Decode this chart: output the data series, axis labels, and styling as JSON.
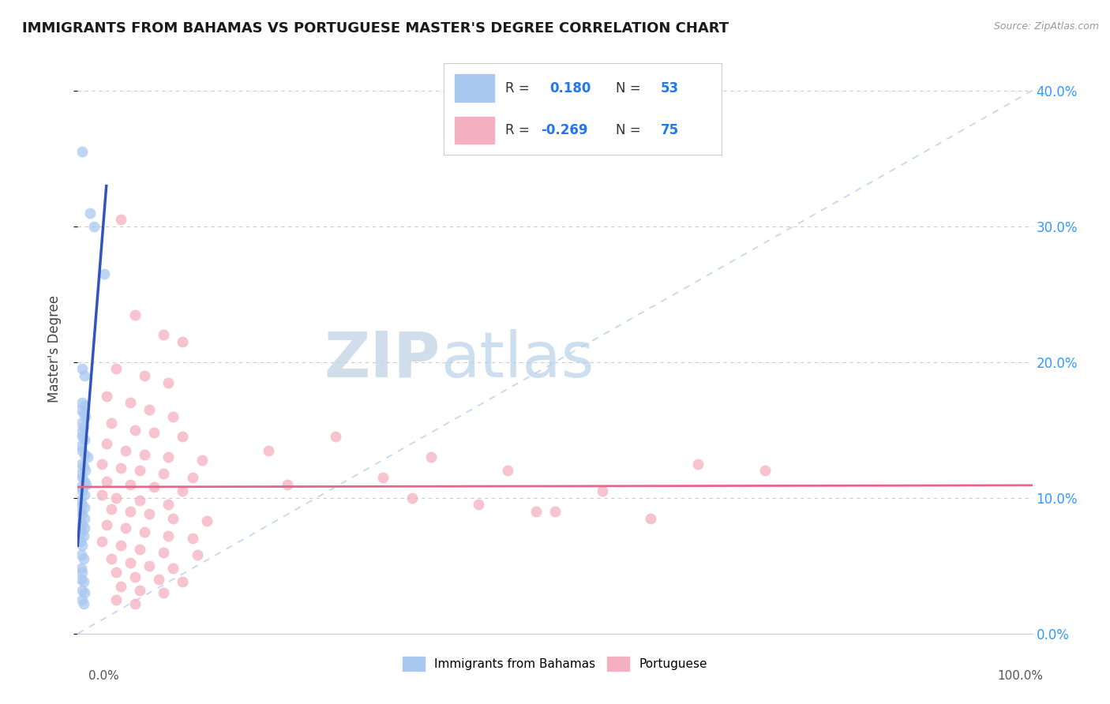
{
  "title": "IMMIGRANTS FROM BAHAMAS VS PORTUGUESE MASTER'S DEGREE CORRELATION CHART",
  "source": "Source: ZipAtlas.com",
  "ylabel": "Master's Degree",
  "r_blue": 0.18,
  "n_blue": 53,
  "r_pink": -0.269,
  "n_pink": 75,
  "color_blue": "#a8c8f0",
  "color_pink": "#f4afc0",
  "line_blue": "#3355bb",
  "line_pink": "#e8648a",
  "yticks": [
    0,
    10,
    20,
    30,
    40
  ],
  "xlim": [
    0,
    100
  ],
  "ylim": [
    0,
    42
  ],
  "blue_points": [
    [
      0.5,
      35.5
    ],
    [
      1.3,
      31.0
    ],
    [
      1.7,
      30.0
    ],
    [
      2.8,
      26.5
    ],
    [
      0.5,
      19.5
    ],
    [
      0.7,
      19.0
    ],
    [
      0.5,
      17.0
    ],
    [
      0.7,
      16.8
    ],
    [
      0.3,
      16.5
    ],
    [
      0.6,
      16.2
    ],
    [
      0.8,
      16.0
    ],
    [
      0.4,
      15.5
    ],
    [
      0.6,
      15.2
    ],
    [
      0.3,
      14.8
    ],
    [
      0.5,
      14.5
    ],
    [
      0.7,
      14.3
    ],
    [
      0.3,
      13.8
    ],
    [
      0.5,
      13.5
    ],
    [
      0.7,
      13.2
    ],
    [
      1.0,
      13.0
    ],
    [
      0.4,
      12.5
    ],
    [
      0.6,
      12.3
    ],
    [
      0.8,
      12.0
    ],
    [
      0.3,
      11.8
    ],
    [
      0.5,
      11.5
    ],
    [
      0.7,
      11.2
    ],
    [
      0.9,
      11.0
    ],
    [
      0.3,
      10.8
    ],
    [
      0.5,
      10.5
    ],
    [
      0.7,
      10.2
    ],
    [
      0.3,
      9.8
    ],
    [
      0.5,
      9.5
    ],
    [
      0.7,
      9.3
    ],
    [
      0.3,
      9.0
    ],
    [
      0.5,
      8.8
    ],
    [
      0.7,
      8.5
    ],
    [
      0.3,
      8.2
    ],
    [
      0.5,
      8.0
    ],
    [
      0.7,
      7.8
    ],
    [
      0.4,
      7.5
    ],
    [
      0.6,
      7.2
    ],
    [
      0.3,
      6.8
    ],
    [
      0.5,
      6.5
    ],
    [
      0.4,
      5.8
    ],
    [
      0.6,
      5.5
    ],
    [
      0.4,
      4.8
    ],
    [
      0.5,
      4.5
    ],
    [
      0.4,
      4.0
    ],
    [
      0.6,
      3.8
    ],
    [
      0.5,
      3.2
    ],
    [
      0.7,
      3.0
    ],
    [
      0.5,
      2.5
    ],
    [
      0.6,
      2.2
    ]
  ],
  "pink_points": [
    [
      4.5,
      30.5
    ],
    [
      6.0,
      23.5
    ],
    [
      9.0,
      22.0
    ],
    [
      11.0,
      21.5
    ],
    [
      4.0,
      19.5
    ],
    [
      7.0,
      19.0
    ],
    [
      9.5,
      18.5
    ],
    [
      3.0,
      17.5
    ],
    [
      5.5,
      17.0
    ],
    [
      7.5,
      16.5
    ],
    [
      10.0,
      16.0
    ],
    [
      3.5,
      15.5
    ],
    [
      6.0,
      15.0
    ],
    [
      8.0,
      14.8
    ],
    [
      11.0,
      14.5
    ],
    [
      3.0,
      14.0
    ],
    [
      5.0,
      13.5
    ],
    [
      7.0,
      13.2
    ],
    [
      9.5,
      13.0
    ],
    [
      13.0,
      12.8
    ],
    [
      2.5,
      12.5
    ],
    [
      4.5,
      12.2
    ],
    [
      6.5,
      12.0
    ],
    [
      9.0,
      11.8
    ],
    [
      12.0,
      11.5
    ],
    [
      3.0,
      11.2
    ],
    [
      5.5,
      11.0
    ],
    [
      8.0,
      10.8
    ],
    [
      11.0,
      10.5
    ],
    [
      2.5,
      10.2
    ],
    [
      4.0,
      10.0
    ],
    [
      6.5,
      9.8
    ],
    [
      9.5,
      9.5
    ],
    [
      3.5,
      9.2
    ],
    [
      5.5,
      9.0
    ],
    [
      7.5,
      8.8
    ],
    [
      10.0,
      8.5
    ],
    [
      13.5,
      8.3
    ],
    [
      3.0,
      8.0
    ],
    [
      5.0,
      7.8
    ],
    [
      7.0,
      7.5
    ],
    [
      9.5,
      7.2
    ],
    [
      12.0,
      7.0
    ],
    [
      2.5,
      6.8
    ],
    [
      4.5,
      6.5
    ],
    [
      6.5,
      6.2
    ],
    [
      9.0,
      6.0
    ],
    [
      12.5,
      5.8
    ],
    [
      3.5,
      5.5
    ],
    [
      5.5,
      5.2
    ],
    [
      7.5,
      5.0
    ],
    [
      10.0,
      4.8
    ],
    [
      4.0,
      4.5
    ],
    [
      6.0,
      4.2
    ],
    [
      8.5,
      4.0
    ],
    [
      11.0,
      3.8
    ],
    [
      4.5,
      3.5
    ],
    [
      6.5,
      3.2
    ],
    [
      9.0,
      3.0
    ],
    [
      4.0,
      2.5
    ],
    [
      6.0,
      2.2
    ],
    [
      27.0,
      14.5
    ],
    [
      37.0,
      13.0
    ],
    [
      20.0,
      13.5
    ],
    [
      32.0,
      11.5
    ],
    [
      45.0,
      12.0
    ],
    [
      55.0,
      10.5
    ],
    [
      42.0,
      9.5
    ],
    [
      50.0,
      9.0
    ],
    [
      60.0,
      8.5
    ],
    [
      22.0,
      11.0
    ],
    [
      35.0,
      10.0
    ],
    [
      48.0,
      9.0
    ],
    [
      65.0,
      12.5
    ],
    [
      72.0,
      12.0
    ]
  ]
}
